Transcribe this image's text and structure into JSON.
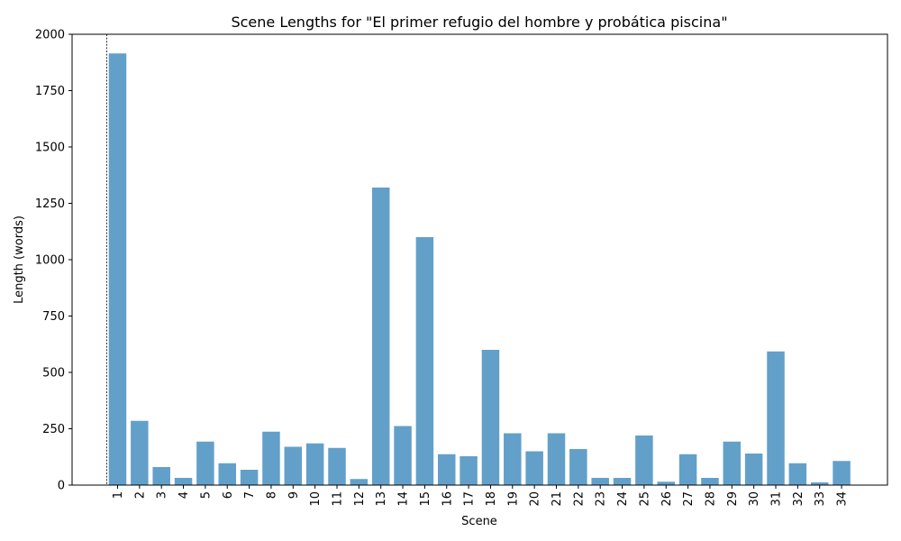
{
  "chart_data": {
    "type": "bar",
    "title": "Scene Lengths for \"El primer refugio del hombre y probática piscina\"",
    "xlabel": "Scene",
    "ylabel": "Length (words)",
    "ylim": [
      0,
      2000
    ],
    "yticks": [
      0,
      250,
      500,
      750,
      1000,
      1250,
      1500,
      1750,
      2000
    ],
    "categories": [
      "1",
      "2",
      "3",
      "4",
      "5",
      "6",
      "7",
      "8",
      "9",
      "10",
      "11",
      "12",
      "13",
      "14",
      "15",
      "16",
      "17",
      "18",
      "19",
      "20",
      "21",
      "22",
      "23",
      "24",
      "25",
      "26",
      "27",
      "28",
      "29",
      "30",
      "31",
      "32",
      "33",
      "34"
    ],
    "values": [
      1915,
      285,
      80,
      32,
      193,
      97,
      68,
      237,
      170,
      185,
      165,
      27,
      1320,
      262,
      1100,
      137,
      128,
      600,
      230,
      150,
      230,
      160,
      32,
      32,
      220,
      15,
      137,
      32,
      193,
      140,
      593,
      97,
      12,
      107
    ],
    "bar_color": "#1f77b4",
    "bar_opacity": 0.7,
    "reference_line": {
      "style": "dashed",
      "position": "left of first bar"
    },
    "grid": false,
    "legend": "none"
  }
}
